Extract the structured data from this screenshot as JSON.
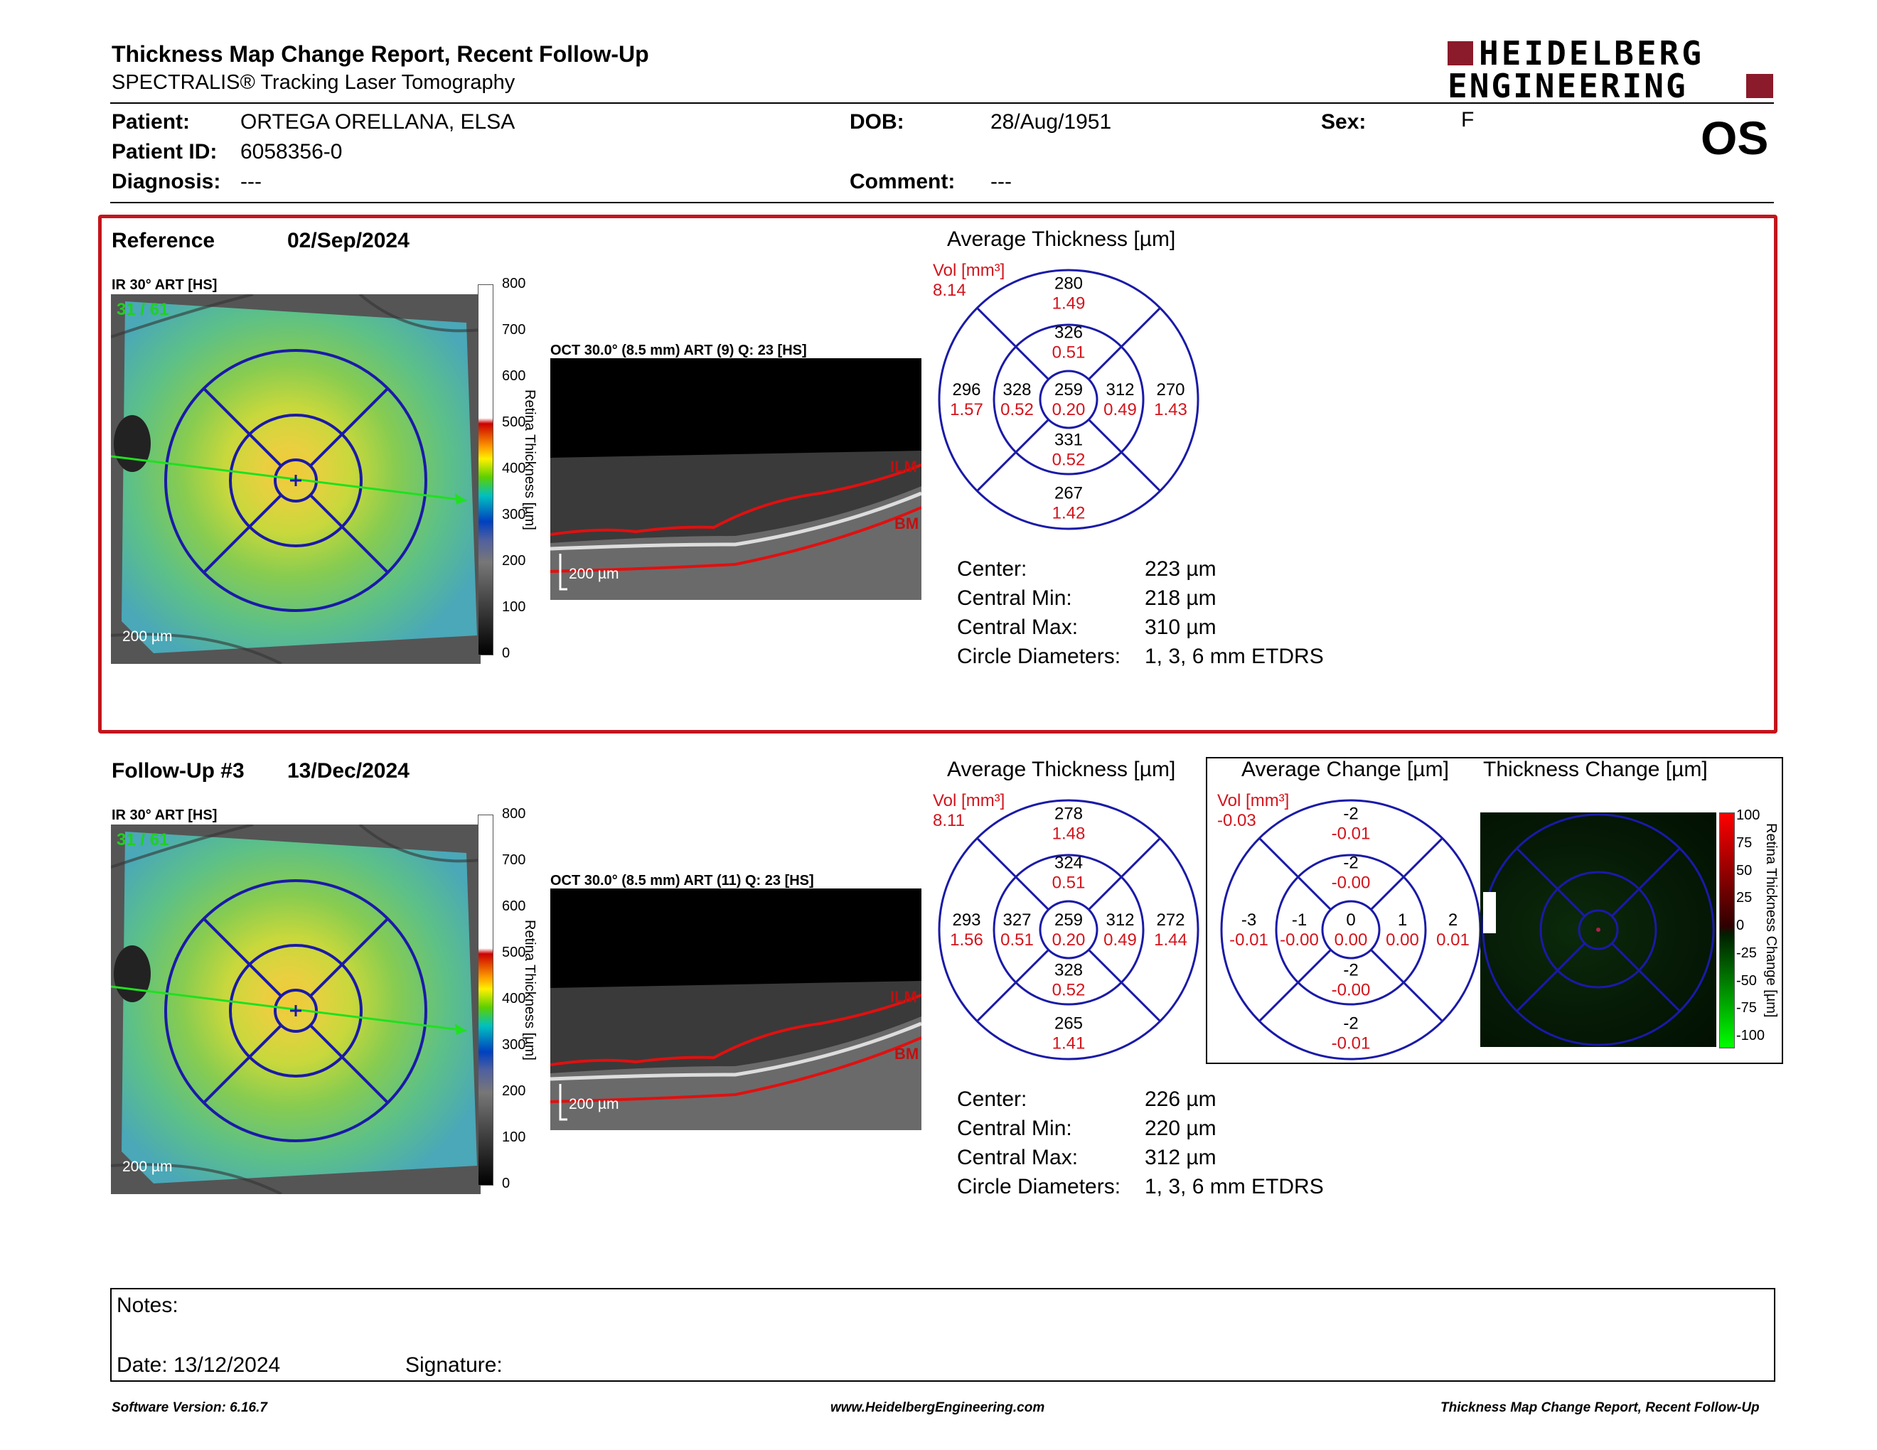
{
  "header": {
    "title": "Thickness Map Change Report, Recent Follow-Up",
    "subtitle": "SPECTRALIS® Tracking Laser Tomography",
    "logo_line1": "HEIDELBERG",
    "logo_line2": "ENGINEERING",
    "eye": "OS"
  },
  "patient": {
    "patient_label": "Patient:",
    "patient_value": "ORTEGA ORELLANA, ELSA",
    "id_label": "Patient ID:",
    "id_value": "6058356-0",
    "diagnosis_label": "Diagnosis:",
    "diagnosis_value": "---",
    "dob_label": "DOB:",
    "dob_value": "28/Aug/1951",
    "comment_label": "Comment:",
    "comment_value": "---",
    "sex_label": "Sex:",
    "sex_value": "F"
  },
  "colors": {
    "frame_red": "#c4141c",
    "circle_blue": "#1a1aa8",
    "value_red": "#d2141c"
  },
  "scale_ticks": [
    "800",
    "700",
    "600",
    "500",
    "400",
    "300",
    "200",
    "100",
    "0"
  ],
  "scale_label": "Retina Thickness [µm]",
  "change_ticks": [
    "100",
    "75",
    "50",
    "25",
    "0",
    "-25",
    "-50",
    "-75",
    "-100"
  ],
  "change_scale_label": "Retina Thickness Change [µm]",
  "reference": {
    "label": "Reference",
    "date": "02/Sep/2024",
    "ir_label": "IR 30° ART [HS]",
    "ir_frames": "31 / 61",
    "scale_bar": "200 µm",
    "oct_label": "OCT 30.0° (8.5 mm) ART (9) Q: 23 [HS]",
    "oct_ilm": "ILM",
    "oct_bm": "BM",
    "oct_scale": "200 µm",
    "avg_title": "Average Thickness [µm]",
    "vol_label": "Vol [mm³]",
    "vol_value": "8.14",
    "grid": {
      "sup_outer": [
        "280",
        "1.49"
      ],
      "sup_inner": [
        "326",
        "0.51"
      ],
      "temp_outer": [
        "296",
        "1.57"
      ],
      "temp_inner": [
        "328",
        "0.52"
      ],
      "center": [
        "259",
        "0.20"
      ],
      "nas_inner": [
        "312",
        "0.49"
      ],
      "nas_outer": [
        "270",
        "1.43"
      ],
      "inf_inner": [
        "331",
        "0.52"
      ],
      "inf_outer": [
        "267",
        "1.42"
      ]
    },
    "stats": {
      "center_label": "Center:",
      "center_value": "223 µm",
      "min_label": "Central Min:",
      "min_value": "218 µm",
      "max_label": "Central Max:",
      "max_value": "310 µm",
      "diam_label": "Circle Diameters:",
      "diam_value": "1, 3, 6 mm ETDRS"
    }
  },
  "followup": {
    "label": "Follow-Up #3",
    "date": "13/Dec/2024",
    "ir_label": "IR 30° ART [HS]",
    "ir_frames": "31 / 61",
    "scale_bar": "200 µm",
    "oct_label": "OCT 30.0° (8.5 mm) ART (11) Q: 23 [HS]",
    "oct_ilm": "ILM",
    "oct_bm": "BM",
    "oct_scale": "200 µm",
    "avg_title": "Average Thickness [µm]",
    "vol_label": "Vol [mm³]",
    "vol_value": "8.11",
    "grid": {
      "sup_outer": [
        "278",
        "1.48"
      ],
      "sup_inner": [
        "324",
        "0.51"
      ],
      "temp_outer": [
        "293",
        "1.56"
      ],
      "temp_inner": [
        "327",
        "0.51"
      ],
      "center": [
        "259",
        "0.20"
      ],
      "nas_inner": [
        "312",
        "0.49"
      ],
      "nas_outer": [
        "272",
        "1.44"
      ],
      "inf_inner": [
        "328",
        "0.52"
      ],
      "inf_outer": [
        "265",
        "1.41"
      ]
    },
    "stats": {
      "center_label": "Center:",
      "center_value": "226 µm",
      "min_label": "Central Min:",
      "min_value": "220 µm",
      "max_label": "Central Max:",
      "max_value": "312 µm",
      "diam_label": "Circle Diameters:",
      "diam_value": "1, 3, 6 mm ETDRS"
    },
    "change_title": "Average Change [µm]",
    "change_vol_label": "Vol [mm³]",
    "change_vol_value": "-0.03",
    "change_grid": {
      "sup_outer": [
        "-2",
        "-0.01"
      ],
      "sup_inner": [
        "-2",
        "-0.00"
      ],
      "temp_outer": [
        "-3",
        "-0.01"
      ],
      "temp_inner": [
        "-1",
        "-0.00"
      ],
      "center": [
        "0",
        "0.00"
      ],
      "nas_inner": [
        "1",
        "0.00"
      ],
      "nas_outer": [
        "2",
        "0.01"
      ],
      "inf_inner": [
        "-2",
        "-0.00"
      ],
      "inf_outer": [
        "-2",
        "-0.01"
      ]
    },
    "thickness_change_title": "Thickness Change [µm]"
  },
  "notes": {
    "notes_label": "Notes:",
    "date_label": "Date: 13/12/2024",
    "signature_label": "Signature:"
  },
  "footer": {
    "software": "Software Version: 6.16.7",
    "website": "www.HeidelbergEngineering.com",
    "report_name": "Thickness Map Change Report, Recent Follow-Up"
  }
}
